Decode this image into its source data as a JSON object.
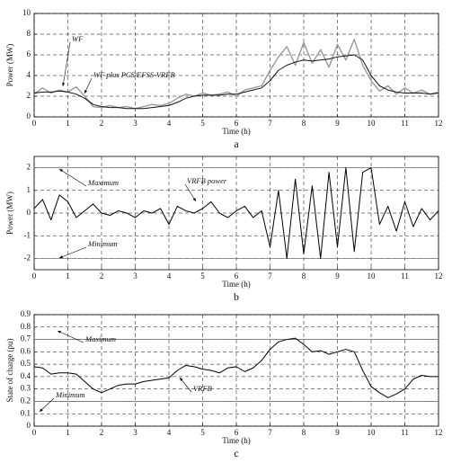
{
  "chart_data": [
    {
      "type": "line",
      "label": "a",
      "xlabel": "Time (h)",
      "ylabel": "Power (MW)",
      "xlim": [
        0,
        12
      ],
      "xticks": [
        0,
        1,
        2,
        3,
        4,
        5,
        6,
        7,
        8,
        9,
        10,
        11,
        12
      ],
      "ylim": [
        0,
        10
      ],
      "yticks": [
        0,
        2,
        4,
        6,
        8,
        10
      ],
      "grid": true,
      "x": [
        0,
        0.25,
        0.5,
        0.75,
        1,
        1.25,
        1.5,
        1.75,
        2,
        2.25,
        2.5,
        2.75,
        3,
        3.25,
        3.5,
        3.75,
        4,
        4.25,
        4.5,
        4.75,
        5,
        5.25,
        5.5,
        5.75,
        6,
        6.25,
        6.5,
        6.75,
        7,
        7.25,
        7.5,
        7.75,
        8,
        8.25,
        8.5,
        8.75,
        9,
        9.25,
        9.5,
        9.75,
        10,
        10.25,
        10.5,
        10.75,
        11,
        11.25,
        11.5,
        11.75,
        12
      ],
      "series": [
        {
          "name": "WF",
          "color": "#9a9a9a",
          "values": [
            2.2,
            2.8,
            2.3,
            2.6,
            2.4,
            2.9,
            2.0,
            1.0,
            0.9,
            1.1,
            0.9,
            1.0,
            0.8,
            1.0,
            1.2,
            1.1,
            1.3,
            1.8,
            2.2,
            2.0,
            2.3,
            2.1,
            2.2,
            2.4,
            2.0,
            2.6,
            2.8,
            3.0,
            4.5,
            5.8,
            6.8,
            5.0,
            7.2,
            5.2,
            6.5,
            4.8,
            7.0,
            5.5,
            7.5,
            5.0,
            3.5,
            2.5,
            3.0,
            2.2,
            2.8,
            2.3,
            2.6,
            2.2,
            2.4
          ]
        },
        {
          "name": "WF plus PCS/EFSS-VRFB",
          "color": "#111111",
          "values": [
            2.3,
            2.4,
            2.4,
            2.5,
            2.4,
            2.2,
            1.8,
            1.2,
            1.0,
            0.9,
            0.9,
            0.8,
            0.8,
            0.8,
            0.9,
            1.0,
            1.1,
            1.4,
            1.8,
            2.0,
            2.1,
            2.1,
            2.1,
            2.2,
            2.2,
            2.4,
            2.6,
            2.8,
            3.5,
            4.5,
            5.0,
            5.3,
            5.5,
            5.4,
            5.5,
            5.6,
            5.8,
            5.9,
            6.0,
            5.5,
            4.0,
            3.0,
            2.6,
            2.4,
            2.3,
            2.3,
            2.3,
            2.2,
            2.3
          ]
        }
      ]
    },
    {
      "type": "line",
      "label": "b",
      "xlabel": "Time (h)",
      "ylabel": "Power (MW)",
      "xlim": [
        0,
        12
      ],
      "xticks": [
        0,
        1,
        2,
        3,
        4,
        5,
        6,
        7,
        8,
        9,
        10,
        11,
        12
      ],
      "ylim": [
        -2.5,
        2.5
      ],
      "yticks": [
        -2,
        -1,
        0,
        1,
        2
      ],
      "grid": true,
      "limits": [
        {
          "name": "Maximum",
          "value": 2
        },
        {
          "name": "Minimum",
          "value": -2
        }
      ],
      "x": [
        0,
        0.25,
        0.5,
        0.75,
        1,
        1.25,
        1.5,
        1.75,
        2,
        2.25,
        2.5,
        2.75,
        3,
        3.25,
        3.5,
        3.75,
        4,
        4.25,
        4.5,
        4.75,
        5,
        5.25,
        5.5,
        5.75,
        6,
        6.25,
        6.5,
        6.75,
        7,
        7.25,
        7.5,
        7.75,
        8,
        8.25,
        8.5,
        8.75,
        9,
        9.25,
        9.5,
        9.75,
        10,
        10.25,
        10.5,
        10.75,
        11,
        11.25,
        11.5,
        11.75,
        12
      ],
      "series": [
        {
          "name": "VRFB power",
          "color": "#000000",
          "values": [
            0.2,
            0.6,
            -0.3,
            0.8,
            0.5,
            -0.2,
            0.1,
            0.4,
            0.0,
            -0.1,
            0.1,
            0.0,
            -0.2,
            0.1,
            0.0,
            0.2,
            -0.5,
            0.3,
            0.1,
            0.0,
            0.2,
            0.5,
            0.0,
            -0.2,
            0.1,
            0.3,
            -0.2,
            0.1,
            -1.5,
            1.0,
            -2.0,
            1.5,
            -1.8,
            1.2,
            -2.0,
            1.8,
            -1.5,
            2.0,
            -1.7,
            1.8,
            2.0,
            -0.5,
            0.3,
            -0.8,
            0.5,
            -0.6,
            0.2,
            -0.3,
            0.1
          ]
        }
      ]
    },
    {
      "type": "line",
      "label": "c",
      "xlabel": "Time (h)",
      "ylabel": "State of charge (pu)",
      "xlim": [
        0,
        12
      ],
      "xticks": [
        0,
        1,
        2,
        3,
        4,
        5,
        6,
        7,
        8,
        9,
        10,
        11,
        12
      ],
      "ylim": [
        0,
        0.9
      ],
      "yticks": [
        0,
        0.1,
        0.2,
        0.3,
        0.4,
        0.5,
        0.6,
        0.7,
        0.8,
        0.9
      ],
      "grid": true,
      "limits": [
        {
          "name": "Maximum",
          "value": 0.7
        },
        {
          "name": "Minimum",
          "value": 0.2
        }
      ],
      "x": [
        0,
        0.25,
        0.5,
        0.75,
        1,
        1.25,
        1.5,
        1.75,
        2,
        2.25,
        2.5,
        2.75,
        3,
        3.25,
        3.5,
        3.75,
        4,
        4.25,
        4.5,
        4.75,
        5,
        5.25,
        5.5,
        5.75,
        6,
        6.25,
        6.5,
        6.75,
        7,
        7.25,
        7.5,
        7.75,
        8,
        8.25,
        8.5,
        8.75,
        9,
        9.25,
        9.5,
        9.75,
        10,
        10.25,
        10.5,
        10.75,
        11,
        11.25,
        11.5,
        11.75,
        12
      ],
      "series": [
        {
          "name": "VRFB",
          "color": "#000000",
          "values": [
            0.48,
            0.47,
            0.42,
            0.43,
            0.43,
            0.42,
            0.36,
            0.3,
            0.27,
            0.3,
            0.33,
            0.34,
            0.34,
            0.36,
            0.37,
            0.38,
            0.39,
            0.45,
            0.49,
            0.48,
            0.46,
            0.45,
            0.43,
            0.47,
            0.48,
            0.44,
            0.47,
            0.53,
            0.62,
            0.68,
            0.7,
            0.71,
            0.66,
            0.6,
            0.61,
            0.58,
            0.6,
            0.62,
            0.6,
            0.45,
            0.32,
            0.27,
            0.23,
            0.26,
            0.3,
            0.38,
            0.41,
            0.4,
            0.4
          ]
        }
      ]
    }
  ]
}
